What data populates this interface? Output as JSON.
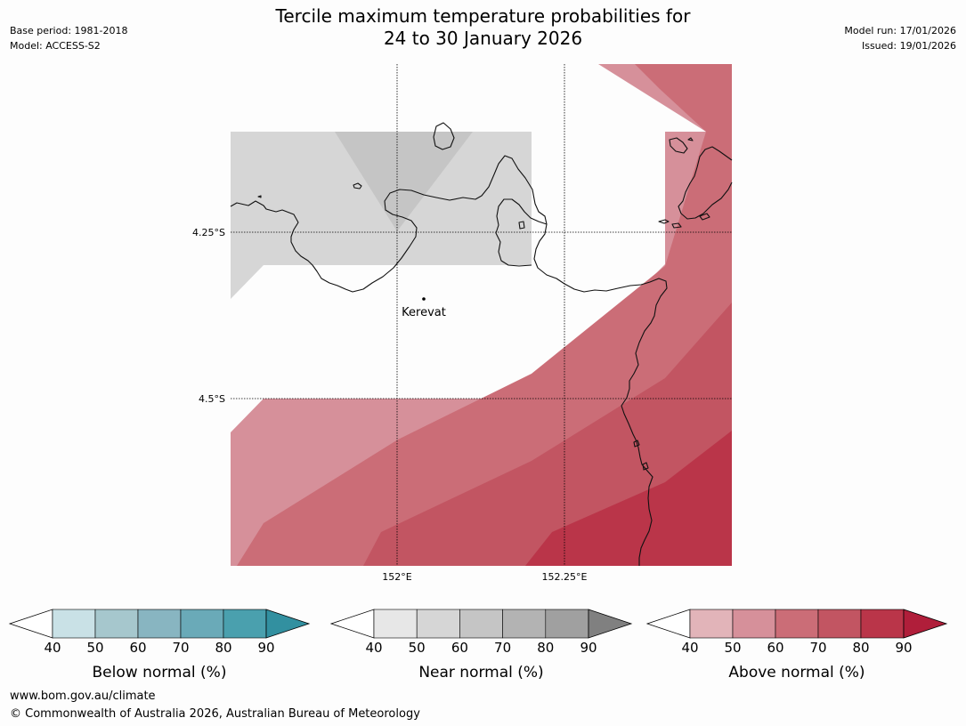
{
  "header": {
    "title_line1": "Tercile maximum temperature probabilities for",
    "title_line2": "24 to 30 January 2026",
    "base_period": "Base period: 1981-2018",
    "model": "Model: ACCESS-S2",
    "model_run": "Model run: 17/01/2026",
    "issued": "Issued: 19/01/2026"
  },
  "map": {
    "lat_labels": [
      "4.25°S",
      "4.5°S"
    ],
    "lon_labels": [
      "152°E",
      "152.25°E"
    ],
    "place": "Kerevat"
  },
  "colorbars": [
    {
      "label": "Below normal (%)",
      "ticks": [
        "40",
        "50",
        "60",
        "70",
        "80",
        "90"
      ],
      "colors": [
        "#ffffff",
        "#c9e1e6",
        "#a6c7cd",
        "#88b5c1",
        "#6aaab8",
        "#4aa0ae",
        "#3290a0"
      ]
    },
    {
      "label": "Near normal (%)",
      "ticks": [
        "40",
        "50",
        "60",
        "70",
        "80",
        "90"
      ],
      "colors": [
        "#ffffff",
        "#e7e7e7",
        "#d6d6d6",
        "#c5c5c5",
        "#b3b3b3",
        "#a0a0a0",
        "#808080"
      ]
    },
    {
      "label": "Above normal (%)",
      "ticks": [
        "40",
        "50",
        "60",
        "70",
        "80",
        "90"
      ],
      "colors": [
        "#ffffff",
        "#e2b4b9",
        "#d6909a",
        "#cb6d77",
        "#c25562",
        "#ba3549",
        "#b01e3a"
      ]
    }
  ],
  "footer": {
    "url": "www.bom.gov.au/climate",
    "copyright": "© Commonwealth of Australia 2026, Australian Bureau of Meteorology"
  }
}
